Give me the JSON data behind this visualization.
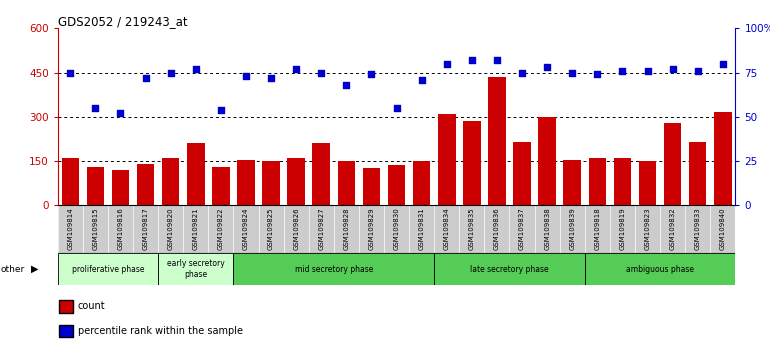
{
  "title": "GDS2052 / 219243_at",
  "samples": [
    "GSM109814",
    "GSM109815",
    "GSM109816",
    "GSM109817",
    "GSM109820",
    "GSM109821",
    "GSM109822",
    "GSM109824",
    "GSM109825",
    "GSM109826",
    "GSM109827",
    "GSM109828",
    "GSM109829",
    "GSM109830",
    "GSM109831",
    "GSM109834",
    "GSM109835",
    "GSM109836",
    "GSM109837",
    "GSM109838",
    "GSM109839",
    "GSM109818",
    "GSM109819",
    "GSM109823",
    "GSM109832",
    "GSM109833",
    "GSM109840"
  ],
  "counts": [
    160,
    130,
    120,
    140,
    160,
    210,
    130,
    155,
    150,
    160,
    210,
    150,
    125,
    135,
    150,
    310,
    285,
    435,
    215,
    300,
    155,
    160,
    160,
    150,
    280,
    215,
    315
  ],
  "percentiles": [
    75,
    55,
    52,
    72,
    75,
    77,
    54,
    73,
    72,
    77,
    75,
    68,
    74,
    55,
    71,
    80,
    82,
    82,
    75,
    78,
    75,
    74,
    76,
    76,
    77,
    76,
    80
  ],
  "ylim_left": [
    0,
    600
  ],
  "ylim_right": [
    0,
    100
  ],
  "yticks_left": [
    0,
    150,
    300,
    450,
    600
  ],
  "yticks_right": [
    0,
    25,
    50,
    75,
    100
  ],
  "ytick_labels_right": [
    "0",
    "25",
    "50",
    "75",
    "100%"
  ],
  "hlines": [
    150,
    300,
    450
  ],
  "bar_color": "#cc0000",
  "dot_color": "#0000cc",
  "phase_data": [
    {
      "label": "proliferative phase",
      "start": 0,
      "end": 4,
      "color": "#ccffcc"
    },
    {
      "label": "early secretory\nphase",
      "start": 4,
      "end": 7,
      "color": "#ccffcc"
    },
    {
      "label": "mid secretory phase",
      "start": 7,
      "end": 15,
      "color": "#55cc55"
    },
    {
      "label": "late secretory phase",
      "start": 15,
      "end": 21,
      "color": "#55cc55"
    },
    {
      "label": "ambiguous phase",
      "start": 21,
      "end": 27,
      "color": "#55cc55"
    }
  ],
  "tick_bg_color": "#cccccc",
  "legend_count_color": "#cc0000",
  "legend_pct_color": "#0000cc"
}
